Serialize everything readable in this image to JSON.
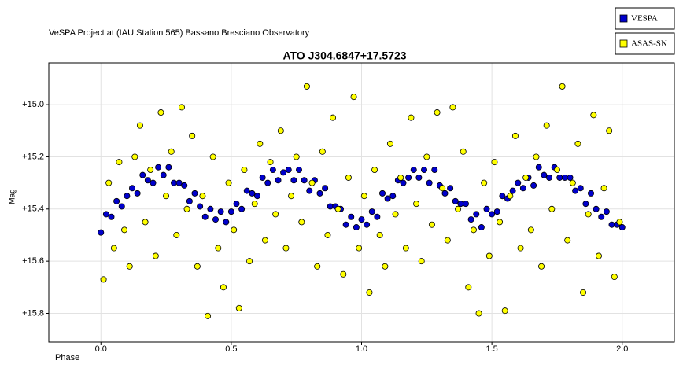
{
  "chart_data": {
    "type": "scatter",
    "subtitle": "VeSPA Project at (IAU Station 565) Bassano Bresciano Observatory",
    "title": "ATO J304.6847+17.5723",
    "x_label": "Phase",
    "y_label": "Mag",
    "xlim": [
      -0.2,
      2.2
    ],
    "ylim": [
      14.84,
      15.91
    ],
    "y_inverted": true,
    "grid": true,
    "legend": "top-right",
    "xticks": [
      {
        "value": 0,
        "label": "0.0"
      },
      0.5,
      {
        "value": 1,
        "label": "1.0"
      },
      1.5,
      {
        "value": 2,
        "label": "2.0"
      }
    ],
    "yticks": [
      {
        "value": 15.0,
        "label": "+15.0"
      },
      {
        "value": 15.2,
        "label": "+15.2"
      },
      {
        "value": 15.4,
        "label": "+15.4"
      },
      {
        "value": 15.6,
        "label": "+15.6"
      },
      {
        "value": 15.8,
        "label": "+15.8"
      }
    ],
    "series": [
      {
        "name": "VESPA",
        "color": "#0000cc",
        "x": [
          0.0,
          0.02,
          0.04,
          0.06,
          0.08,
          0.1,
          0.12,
          0.14,
          0.16,
          0.18,
          0.2,
          0.22,
          0.24,
          0.26,
          0.28,
          0.3,
          0.32,
          0.34,
          0.36,
          0.38,
          0.4,
          0.42,
          0.44,
          0.46,
          0.48,
          0.5,
          0.52,
          0.54,
          0.56,
          0.58,
          0.6,
          0.62,
          0.64,
          0.66,
          0.68,
          0.7,
          0.72,
          0.74,
          0.76,
          0.78,
          0.8,
          0.82,
          0.84,
          0.86,
          0.88,
          0.9,
          0.92,
          0.94,
          0.96,
          0.98,
          1.0,
          1.02,
          1.04,
          1.06,
          1.08,
          1.1,
          1.12,
          1.14,
          1.16,
          1.18,
          1.2,
          1.22,
          1.24,
          1.26,
          1.28,
          1.3,
          1.32,
          1.34,
          1.36,
          1.38,
          1.4,
          1.42,
          1.44,
          1.46,
          1.48,
          1.5,
          1.52,
          1.54,
          1.56,
          1.58,
          1.6,
          1.62,
          1.64,
          1.66,
          1.68,
          1.7,
          1.72,
          1.74,
          1.76,
          1.78,
          1.8,
          1.82,
          1.84,
          1.86,
          1.88,
          1.9,
          1.92,
          1.94,
          1.96,
          1.98,
          2.0
        ],
        "values": [
          15.49,
          15.42,
          15.43,
          15.37,
          15.39,
          15.35,
          15.32,
          15.34,
          15.27,
          15.29,
          15.3,
          15.24,
          15.27,
          15.24,
          15.3,
          15.3,
          15.31,
          15.37,
          15.34,
          15.39,
          15.43,
          15.4,
          15.44,
          15.41,
          15.45,
          15.41,
          15.38,
          15.4,
          15.33,
          15.34,
          15.35,
          15.28,
          15.3,
          15.25,
          15.29,
          15.26,
          15.25,
          15.29,
          15.25,
          15.29,
          15.33,
          15.29,
          15.34,
          15.32,
          15.39,
          15.39,
          15.4,
          15.46,
          15.43,
          15.47,
          15.44,
          15.46,
          15.41,
          15.43,
          15.34,
          15.36,
          15.35,
          15.29,
          15.3,
          15.28,
          15.25,
          15.28,
          15.25,
          15.3,
          15.25,
          15.31,
          15.34,
          15.32,
          15.37,
          15.38,
          15.38,
          15.44,
          15.42,
          15.47,
          15.4,
          15.42,
          15.41,
          15.35,
          15.36,
          15.33,
          15.3,
          15.32,
          15.28,
          15.31,
          15.24,
          15.27,
          15.28,
          15.24,
          15.28,
          15.28,
          15.28,
          15.33,
          15.32,
          15.38,
          15.34,
          15.4,
          15.43,
          15.41,
          15.46,
          15.46,
          15.47
        ]
      },
      {
        "name": "ASAS-SN",
        "color": "#ffff00",
        "x": [
          0.01,
          0.03,
          0.05,
          0.07,
          0.09,
          0.11,
          0.13,
          0.15,
          0.17,
          0.19,
          0.21,
          0.23,
          0.25,
          0.27,
          0.29,
          0.31,
          0.33,
          0.35,
          0.37,
          0.39,
          0.41,
          0.43,
          0.45,
          0.47,
          0.49,
          0.51,
          0.53,
          0.55,
          0.57,
          0.59,
          0.61,
          0.63,
          0.65,
          0.67,
          0.69,
          0.71,
          0.73,
          0.75,
          0.77,
          0.79,
          0.81,
          0.83,
          0.85,
          0.87,
          0.89,
          0.91,
          0.93,
          0.95,
          0.97,
          0.99,
          1.01,
          1.03,
          1.05,
          1.07,
          1.09,
          1.11,
          1.13,
          1.15,
          1.17,
          1.19,
          1.21,
          1.23,
          1.25,
          1.27,
          1.29,
          1.31,
          1.33,
          1.35,
          1.37,
          1.39,
          1.41,
          1.43,
          1.45,
          1.47,
          1.49,
          1.51,
          1.53,
          1.55,
          1.57,
          1.59,
          1.61,
          1.63,
          1.65,
          1.67,
          1.69,
          1.71,
          1.73,
          1.75,
          1.77,
          1.79,
          1.81,
          1.83,
          1.85,
          1.87,
          1.89,
          1.91,
          1.93,
          1.95,
          1.97,
          1.99
        ],
        "values": [
          15.67,
          15.3,
          15.55,
          15.22,
          15.48,
          15.62,
          15.2,
          15.08,
          15.45,
          15.25,
          15.58,
          15.03,
          15.35,
          15.18,
          15.5,
          15.01,
          15.4,
          15.12,
          15.62,
          15.35,
          15.81,
          15.2,
          15.55,
          15.7,
          15.3,
          15.48,
          15.78,
          15.25,
          15.6,
          15.38,
          15.15,
          15.52,
          15.22,
          15.42,
          15.1,
          15.55,
          15.35,
          15.2,
          15.45,
          14.93,
          15.3,
          15.62,
          15.18,
          15.5,
          15.05,
          15.4,
          15.65,
          15.28,
          14.97,
          15.55,
          15.35,
          15.72,
          15.25,
          15.5,
          15.62,
          15.15,
          15.42,
          15.28,
          15.55,
          15.05,
          15.38,
          15.6,
          15.2,
          15.46,
          15.03,
          15.32,
          15.52,
          15.01,
          15.4,
          15.18,
          15.7,
          15.48,
          15.8,
          15.3,
          15.58,
          15.22,
          15.45,
          15.79,
          15.35,
          15.12,
          15.55,
          15.28,
          15.48,
          15.2,
          15.62,
          15.08,
          15.4,
          15.25,
          14.93,
          15.52,
          15.3,
          15.15,
          15.72,
          15.42,
          15.04,
          15.58,
          15.32,
          15.1,
          15.66,
          15.45
        ]
      }
    ]
  }
}
